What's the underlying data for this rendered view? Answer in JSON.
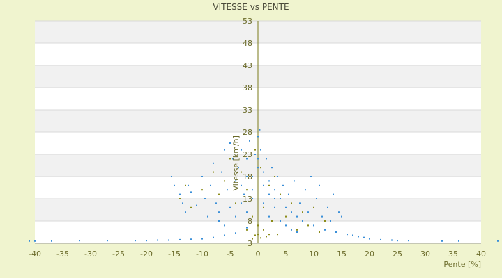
{
  "chart_data": {
    "type": "scatter",
    "title": "VITESSE vs PENTE",
    "xlabel": "Pente [%]",
    "ylabel": "Vitesse [km/h]",
    "xlim": [
      -40,
      40
    ],
    "ylim": [
      3,
      53
    ],
    "x_ticks": [
      "-40",
      "-35",
      "-30",
      "-25",
      "-20",
      "-15",
      "-10",
      "-5",
      "0",
      "5",
      "10",
      "15",
      "20",
      "25",
      "30",
      "35",
      "40"
    ],
    "y_ticks": [
      "3",
      "8",
      "13",
      "18",
      "23",
      "28",
      "33",
      "38",
      "43",
      "48",
      "53"
    ],
    "grid": true,
    "banded_background": true,
    "legend": "none",
    "series": [
      {
        "color": "#3a8fd8",
        "points": [
          [
            -41,
            3.5
          ],
          [
            -40,
            3.5
          ],
          [
            -37,
            3.5
          ],
          [
            -32,
            3.6
          ],
          [
            -27,
            3.6
          ],
          [
            -22,
            3.6
          ],
          [
            -20,
            3.6
          ],
          [
            -18,
            3.7
          ],
          [
            -16,
            3.7
          ],
          [
            -14,
            3.8
          ],
          [
            -12,
            3.9
          ],
          [
            -10,
            4
          ],
          [
            -8,
            4.3
          ],
          [
            -6,
            4.8
          ],
          [
            -4,
            5.3
          ],
          [
            -2,
            6.5
          ],
          [
            -15.5,
            18
          ],
          [
            -15,
            16
          ],
          [
            -14,
            14
          ],
          [
            -13.5,
            12
          ],
          [
            -13,
            10
          ],
          [
            -12.5,
            16
          ],
          [
            -12,
            14.5
          ],
          [
            -11,
            11.5
          ],
          [
            -10,
            18
          ],
          [
            -9.5,
            13
          ],
          [
            -9,
            9
          ],
          [
            -8.5,
            16
          ],
          [
            -8,
            21
          ],
          [
            -7.5,
            12
          ],
          [
            -7,
            8
          ],
          [
            -6.5,
            19
          ],
          [
            -6,
            24
          ],
          [
            -5.5,
            15
          ],
          [
            -5,
            25.5
          ],
          [
            -4.5,
            22
          ],
          [
            -4,
            17
          ],
          [
            -3.5,
            20
          ],
          [
            -3,
            24
          ],
          [
            -2.5,
            14
          ],
          [
            -2,
            22
          ],
          [
            -1.5,
            26
          ],
          [
            -1,
            18
          ],
          [
            -0.5,
            23
          ],
          [
            0,
            27
          ],
          [
            0,
            22
          ],
          [
            0,
            20
          ],
          [
            0.3,
            28.5
          ],
          [
            0.5,
            24
          ],
          [
            1,
            19
          ],
          [
            1.5,
            22
          ],
          [
            2,
            17
          ],
          [
            2.5,
            20
          ],
          [
            3,
            15
          ],
          [
            3.5,
            18
          ],
          [
            4,
            13
          ],
          [
            4.5,
            16
          ],
          [
            5,
            11
          ],
          [
            5.5,
            14
          ],
          [
            6,
            10
          ],
          [
            6.5,
            17
          ],
          [
            7,
            9
          ],
          [
            7.5,
            12
          ],
          [
            8,
            8
          ],
          [
            8.5,
            15
          ],
          [
            9,
            10
          ],
          [
            9.5,
            18
          ],
          [
            10,
            7
          ],
          [
            10.5,
            13
          ],
          [
            11,
            16
          ],
          [
            11.5,
            9
          ],
          [
            12,
            6
          ],
          [
            12.5,
            11
          ],
          [
            13,
            8
          ],
          [
            13.5,
            14
          ],
          [
            14,
            5.5
          ],
          [
            14.5,
            10
          ],
          [
            15,
            9
          ],
          [
            16,
            5
          ],
          [
            17,
            4.8
          ],
          [
            18,
            4.5
          ],
          [
            19,
            4.3
          ],
          [
            20,
            4
          ],
          [
            22,
            3.8
          ],
          [
            24,
            3.7
          ],
          [
            25,
            3.6
          ],
          [
            27,
            3.6
          ],
          [
            33,
            3.5
          ],
          [
            36,
            3.5
          ],
          [
            43,
            3.5
          ],
          [
            -3,
            12
          ],
          [
            -2,
            10
          ],
          [
            -1,
            13
          ],
          [
            1,
            12
          ],
          [
            2,
            9
          ],
          [
            3,
            11
          ],
          [
            4,
            8
          ],
          [
            5,
            7
          ],
          [
            6,
            6
          ],
          [
            7,
            5.5
          ],
          [
            -4,
            9
          ],
          [
            -5,
            11
          ],
          [
            -6,
            7
          ],
          [
            -7,
            10
          ],
          [
            -3,
            16
          ],
          [
            -2,
            18
          ],
          [
            -1,
            15
          ],
          [
            1,
            16
          ],
          [
            2,
            14
          ],
          [
            3,
            13
          ]
        ]
      },
      {
        "color": "#8c8c1a",
        "points": [
          [
            -14,
            13
          ],
          [
            -13,
            16
          ],
          [
            -12,
            11
          ],
          [
            -10,
            15
          ],
          [
            -8,
            19
          ],
          [
            -7,
            14
          ],
          [
            -6,
            17
          ],
          [
            -5,
            22
          ],
          [
            -4,
            12
          ],
          [
            -3,
            19
          ],
          [
            -2,
            15
          ],
          [
            -1,
            9
          ],
          [
            -0.5,
            24
          ],
          [
            0,
            5
          ],
          [
            0,
            7
          ],
          [
            0.5,
            20
          ],
          [
            1,
            11
          ],
          [
            1.5,
            4.5
          ],
          [
            2,
            16
          ],
          [
            2.5,
            8
          ],
          [
            3,
            18
          ],
          [
            3.5,
            5
          ],
          [
            4,
            14
          ],
          [
            5,
            9
          ],
          [
            6,
            12
          ],
          [
            7,
            6
          ],
          [
            8,
            10
          ],
          [
            9,
            7
          ],
          [
            10,
            11
          ],
          [
            11,
            5.5
          ],
          [
            12,
            8
          ],
          [
            -1,
            4
          ],
          [
            -0.5,
            4.8
          ],
          [
            0.5,
            4.2
          ],
          [
            1,
            6
          ],
          [
            -2,
            6
          ],
          [
            2,
            5
          ]
        ]
      }
    ]
  }
}
